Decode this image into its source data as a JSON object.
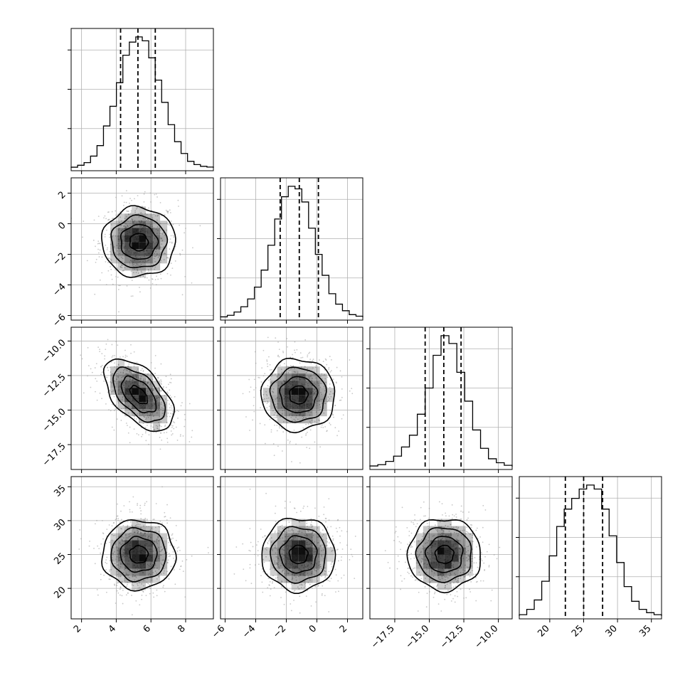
{
  "chart_data": {
    "type": "corner",
    "parameters": [
      {
        "ticks": [
          2,
          4,
          6,
          8
        ],
        "tick_labels": [
          "2",
          "4",
          "6",
          "8"
        ],
        "range": [
          1.4,
          9.6
        ],
        "quantiles": [
          4.25,
          5.25,
          6.25
        ],
        "hist": [
          0.5,
          2,
          4,
          9,
          17,
          32,
          47,
          65,
          86,
          96,
          100,
          97,
          84,
          67,
          50,
          33,
          20,
          11,
          5,
          2.5,
          1.2,
          0.6
        ]
      },
      {
        "ticks": [
          -6,
          -4,
          -2,
          0,
          2
        ],
        "tick_labels": [
          "−6",
          "−4",
          "−2",
          "0",
          "2"
        ],
        "range": [
          -6.3,
          3.0
        ],
        "quantiles": [
          -2.4,
          -1.15,
          0.1
        ],
        "hist": [
          0.3,
          1.5,
          4,
          8,
          14,
          23,
          36,
          55,
          75,
          92,
          100,
          98,
          88,
          68,
          48,
          32,
          18,
          10,
          5,
          2,
          0.8
        ]
      },
      {
        "ticks": [
          -17.5,
          -15.0,
          -12.5,
          -10.0
        ],
        "tick_labels": [
          "−17.5",
          "−15.0",
          "−12.5",
          "−10.0"
        ],
        "range": [
          -19.3,
          -9.0
        ],
        "quantiles": [
          -15.3,
          -13.95,
          -12.7
        ],
        "hist": [
          0.5,
          1.5,
          4,
          8,
          15,
          24,
          40,
          60,
          85,
          100,
          94,
          72,
          50,
          28,
          14,
          6,
          3,
          1
        ]
      },
      {
        "ticks": [
          20,
          25,
          30,
          35
        ],
        "tick_labels": [
          "20",
          "25",
          "30",
          "35"
        ],
        "range": [
          15.5,
          36.5
        ],
        "quantiles": [
          22.3,
          25.0,
          27.8
        ],
        "hist": [
          1,
          5,
          12,
          26,
          45,
          67,
          80,
          88,
          95,
          98,
          95,
          80,
          60,
          40,
          22,
          11,
          5,
          2.5,
          1
        ]
      }
    ],
    "pairs": [
      {
        "row": 1,
        "col": 0,
        "mean": [
          5.3,
          -1.2
        ],
        "sd": [
          1.0,
          1.2
        ],
        "rho": 0.0
      },
      {
        "row": 2,
        "col": 0,
        "mean": [
          5.3,
          -13.9
        ],
        "sd": [
          1.0,
          1.3
        ],
        "rho": -0.55
      },
      {
        "row": 2,
        "col": 1,
        "mean": [
          -1.2,
          -13.9
        ],
        "sd": [
          1.2,
          1.3
        ],
        "rho": 0.0
      },
      {
        "row": 3,
        "col": 0,
        "mean": [
          5.3,
          25.0
        ],
        "sd": [
          1.0,
          2.7
        ],
        "rho": 0.0
      },
      {
        "row": 3,
        "col": 1,
        "mean": [
          -1.2,
          25.0
        ],
        "sd": [
          1.2,
          2.7
        ],
        "rho": 0.0
      },
      {
        "row": 3,
        "col": 2,
        "mean": [
          -13.9,
          25.0
        ],
        "sd": [
          1.3,
          2.7
        ],
        "rho": 0.0
      }
    ],
    "contour_levels": [
      0.5,
      1.0,
      1.5,
      2.0
    ],
    "grid": true,
    "colors": {
      "line": "#000000",
      "grid": "#b0b0b0",
      "points": "#9a9a9a",
      "cell": "#000000"
    }
  }
}
